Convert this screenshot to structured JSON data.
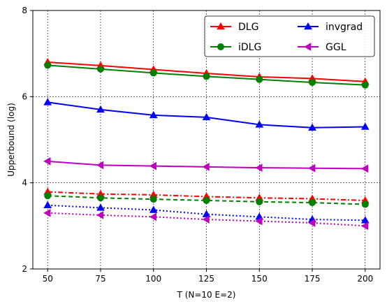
{
  "chart_data": {
    "type": "line",
    "xlabel": "T (N=10 E=2)",
    "ylabel": "Upperbound (log)",
    "x": [
      50,
      75,
      100,
      125,
      150,
      175,
      200
    ],
    "xticks": [
      "50",
      "75",
      "100",
      "125",
      "150",
      "175",
      "200"
    ],
    "yticks": [
      "2",
      "4",
      "6",
      "8"
    ],
    "xlim": [
      43,
      207
    ],
    "ylim": [
      2,
      8
    ],
    "grid": true,
    "legend_placement": "top-right",
    "legend_columns": 2,
    "series": [
      {
        "name": "DLG",
        "color": "#ff0000",
        "marker": "triangle-up",
        "linestyle": "solid",
        "values": [
          6.8,
          6.72,
          6.63,
          6.54,
          6.46,
          6.42,
          6.35
        ]
      },
      {
        "name": "iDLG",
        "color": "#008000",
        "marker": "circle",
        "linestyle": "solid",
        "values": [
          6.73,
          6.64,
          6.55,
          6.47,
          6.4,
          6.33,
          6.27
        ]
      },
      {
        "name": "invgrad",
        "color": "#0000ff",
        "marker": "triangle-up",
        "linestyle": "solid",
        "values": [
          5.87,
          5.7,
          5.57,
          5.52,
          5.35,
          5.28,
          5.3
        ]
      },
      {
        "name": "GGL",
        "color": "#bf00bf",
        "marker": "triangle-left",
        "linestyle": "solid",
        "values": [
          4.5,
          4.41,
          4.39,
          4.37,
          4.35,
          4.34,
          4.33
        ]
      },
      {
        "name": "",
        "color": "#ff0000",
        "marker": "triangle-up",
        "linestyle": "dashdot",
        "values": [
          3.79,
          3.74,
          3.72,
          3.68,
          3.65,
          3.63,
          3.59
        ]
      },
      {
        "name": "",
        "color": "#008000",
        "marker": "circle",
        "linestyle": "dashed",
        "values": [
          3.7,
          3.65,
          3.62,
          3.59,
          3.56,
          3.54,
          3.5
        ]
      },
      {
        "name": "",
        "color": "#0000ff",
        "marker": "triangle-up",
        "linestyle": "dotted",
        "values": [
          3.48,
          3.42,
          3.37,
          3.27,
          3.21,
          3.15,
          3.13
        ]
      },
      {
        "name": "",
        "color": "#bf00bf",
        "marker": "triangle-left",
        "linestyle": "dotted",
        "values": [
          3.3,
          3.25,
          3.21,
          3.15,
          3.11,
          3.07,
          3.0
        ]
      }
    ]
  }
}
